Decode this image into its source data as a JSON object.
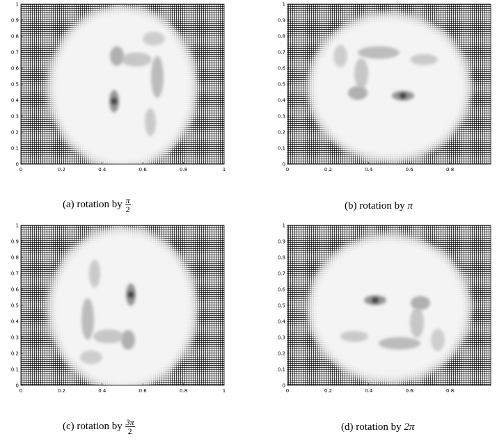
{
  "panels": [
    {
      "id": "a",
      "caption_prefix": "(a)",
      "caption_text": "rotation by",
      "angle": {
        "numerator": "π",
        "denominator": "2"
      },
      "x_ticks": [
        "0",
        "0.2",
        "0.4",
        "0.6",
        "0.8",
        "1"
      ],
      "y_ticks": [
        "0",
        "0.1",
        "0.2",
        "0.3",
        "0.4",
        "0.5",
        "0.6",
        "0.7",
        "0.8",
        "0.9",
        "1"
      ],
      "rotation_deg": 90
    },
    {
      "id": "b",
      "caption_prefix": "(b)",
      "caption_text": "rotation by",
      "angle": {
        "plain": "π"
      },
      "x_ticks": [
        "0",
        "0.2",
        "0.4",
        "0.6",
        "0.8"
      ],
      "y_ticks": [
        "0",
        "0.1",
        "0.2",
        "0.3",
        "0.4",
        "0.5",
        "0.6",
        "0.7",
        "0.8",
        "0.9",
        "1"
      ],
      "rotation_deg": 180
    },
    {
      "id": "c",
      "caption_prefix": "(c)",
      "caption_text": "rotation by",
      "angle": {
        "numerator": "3π",
        "denominator": "2"
      },
      "x_ticks": [
        "0",
        "0.2",
        "0.4",
        "0.6",
        "0.8",
        "1"
      ],
      "y_ticks": [
        "0",
        "0.1",
        "0.2",
        "0.3",
        "0.4",
        "0.5",
        "0.6",
        "0.7",
        "0.8",
        "0.9",
        "1"
      ],
      "rotation_deg": 270
    },
    {
      "id": "d",
      "caption_prefix": "(d)",
      "caption_text": "rotation by",
      "angle": {
        "plain": "2π"
      },
      "x_ticks": [
        "0",
        "0.2",
        "0.4",
        "0.6",
        "0.8"
      ],
      "y_ticks": [
        "0",
        "0.1",
        "0.2",
        "0.3",
        "0.4",
        "0.5",
        "0.6",
        "0.7",
        "0.8",
        "0.9",
        "1"
      ],
      "rotation_deg": 0
    }
  ],
  "colors": {
    "mesh": "#000000",
    "background": "#ffffff",
    "face": "#f4f4f4"
  }
}
